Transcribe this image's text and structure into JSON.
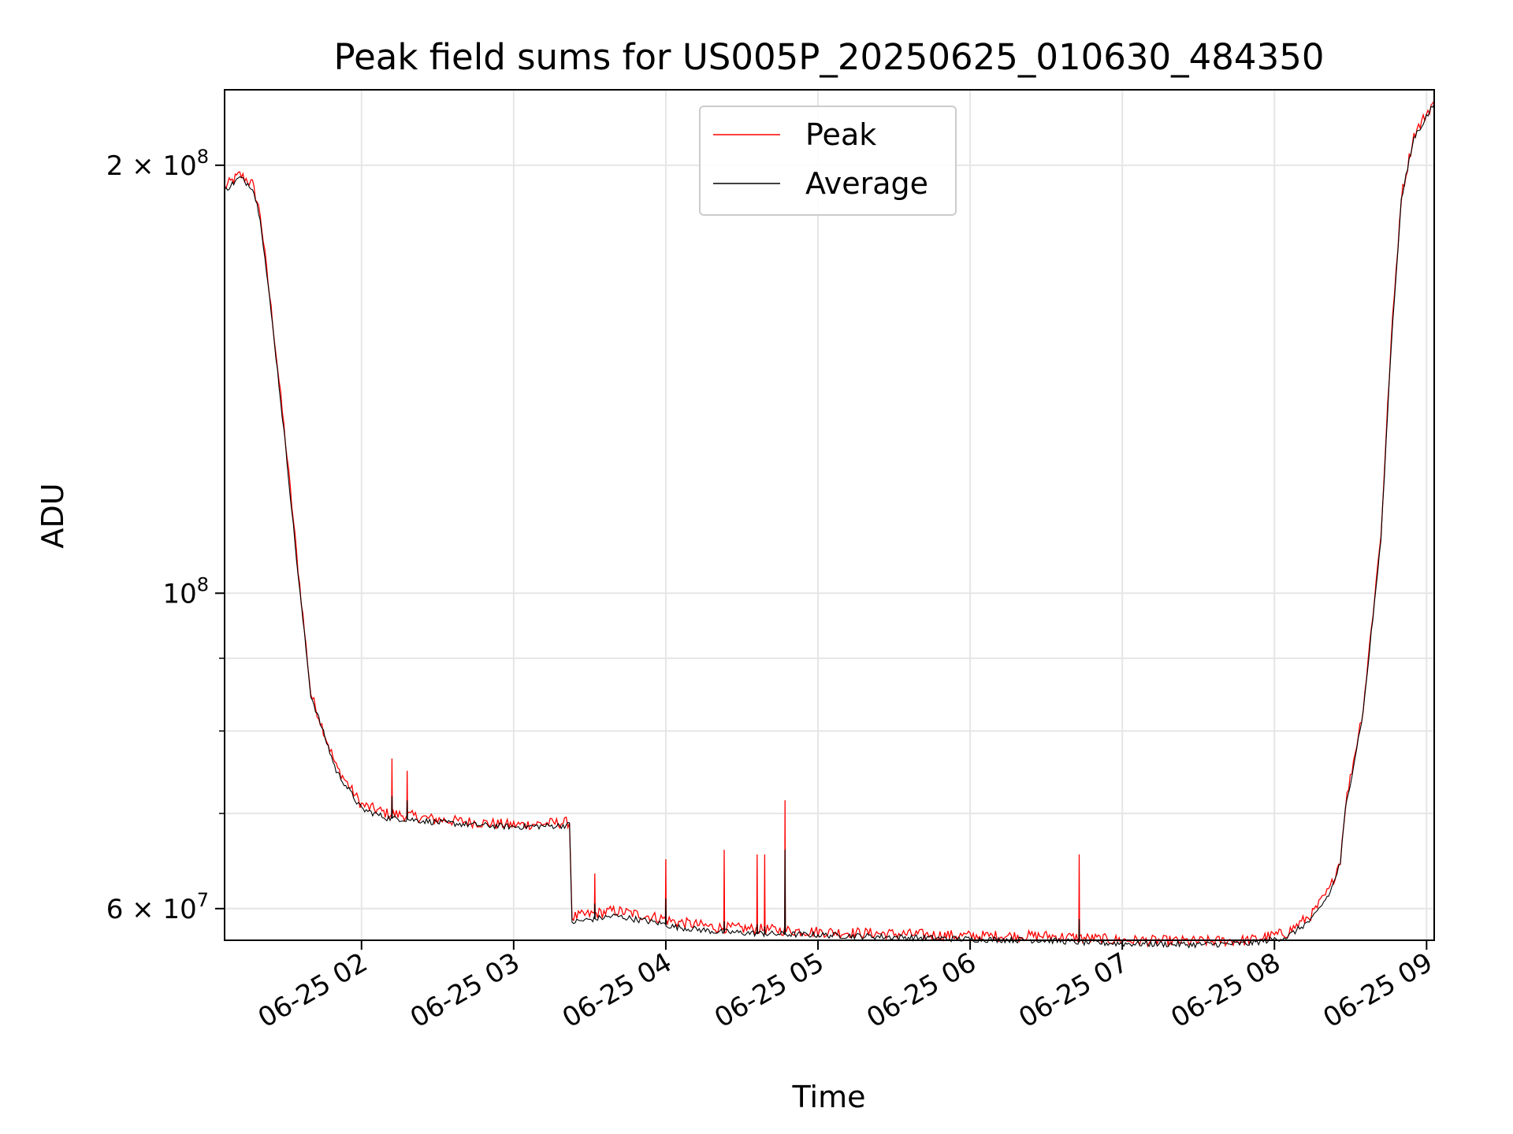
{
  "chart_data": {
    "type": "line",
    "title": "Peak field sums for US005P_20250625_010630_484350",
    "xlabel": "Time",
    "ylabel": "ADU",
    "x_tick_labels": [
      "06-25 02",
      "06-25 03",
      "06-25 04",
      "06-25 05",
      "06-25 06",
      "06-25 07",
      "06-25 08",
      "06-25 09"
    ],
    "y_tick_labels": [
      {
        "value": 60000000,
        "base": "6 × 10",
        "exp": "7"
      },
      {
        "value": 100000000,
        "base": "10",
        "exp": "8"
      },
      {
        "value": 200000000,
        "base": "2 × 10",
        "exp": "8"
      }
    ],
    "xlim": [
      "06-25 01:06",
      "06-25 09:03"
    ],
    "ylim": [
      57000000,
      226000000
    ],
    "yscale": "log",
    "grid": true,
    "legend_position": "top-center",
    "series": [
      {
        "name": "Peak",
        "color": "#ff0000"
      },
      {
        "name": "Average",
        "color": "#000000"
      }
    ],
    "x": [
      "06-25 01:06",
      "06-25 01:12",
      "06-25 01:17",
      "06-25 01:20",
      "06-25 01:25",
      "06-25 01:30",
      "06-25 01:35",
      "06-25 01:40",
      "06-25 01:50",
      "06-25 02:00",
      "06-25 02:10",
      "06-25 02:20",
      "06-25 02:30",
      "06-25 02:45",
      "06-25 03:00",
      "06-25 03:15",
      "06-25 03:22",
      "06-25 03:23",
      "06-25 03:40",
      "06-25 04:00",
      "06-25 04:02",
      "06-25 04:20",
      "06-25 04:40",
      "06-25 05:00",
      "06-25 05:30",
      "06-25 06:00",
      "06-25 06:30",
      "06-25 06:45",
      "06-25 07:00",
      "06-25 07:30",
      "06-25 07:50",
      "06-25 08:05",
      "06-25 08:15",
      "06-25 08:22",
      "06-25 08:26",
      "06-25 08:28",
      "06-25 08:35",
      "06-25 08:42",
      "06-25 08:46",
      "06-25 08:50",
      "06-25 08:55",
      "06-25 09:03"
    ],
    "peak_values": [
      193000000,
      197000000,
      194000000,
      185000000,
      155000000,
      128000000,
      104000000,
      85000000,
      75500000,
      71000000,
      70000000,
      69700000,
      69300000,
      69000000,
      68700000,
      68900000,
      69000000,
      59200000,
      59800000,
      59000000,
      58800000,
      58200000,
      58000000,
      57800000,
      57600000,
      57400000,
      57400000,
      57200000,
      57000000,
      56900000,
      57000000,
      57700000,
      59500000,
      62000000,
      65000000,
      71000000,
      83000000,
      110000000,
      150000000,
      190000000,
      210000000,
      222000000
    ],
    "average_values": [
      192000000,
      196000000,
      193000000,
      184000000,
      154000000,
      127000000,
      103000000,
      84800000,
      75000000,
      70500000,
      69500000,
      69300000,
      69000000,
      68700000,
      68500000,
      68600000,
      68700000,
      58700000,
      59300000,
      58500000,
      58300000,
      57800000,
      57600000,
      57500000,
      57300000,
      57100000,
      57000000,
      56800000,
      56700000,
      56600000,
      56700000,
      57300000,
      59000000,
      61600000,
      64600000,
      70500000,
      82500000,
      109000000,
      149000000,
      189000000,
      209000000,
      221000000
    ],
    "spikes": [
      {
        "x": "06-25 02:12",
        "peak": 76500000,
        "average": 72000000
      },
      {
        "x": "06-25 02:18",
        "peak": 75000000,
        "average": 71500000
      },
      {
        "x": "06-25 03:32",
        "peak": 63500000,
        "average": 60500000
      },
      {
        "x": "06-25 04:00",
        "peak": 65000000,
        "average": 61000000
      },
      {
        "x": "06-25 04:23",
        "peak": 66000000,
        "average": 58800000
      },
      {
        "x": "06-25 04:36",
        "peak": 65500000,
        "average": 58500000
      },
      {
        "x": "06-25 04:39",
        "peak": 65500000,
        "average": 58300000
      },
      {
        "x": "06-25 04:47",
        "peak": 71500000,
        "average": 66000000
      },
      {
        "x": "06-25 06:43",
        "peak": 65500000,
        "average": 59000000
      }
    ]
  }
}
